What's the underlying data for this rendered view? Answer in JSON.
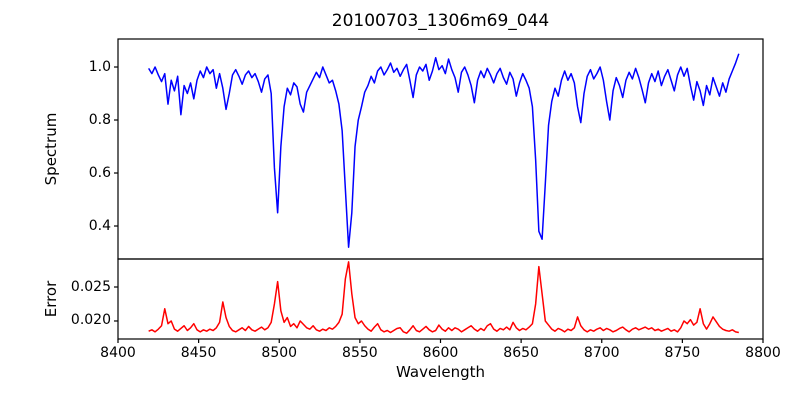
{
  "chart_data": {
    "type": "line",
    "title": "20100703_1306m69_044",
    "xlabel": "Wavelength",
    "xlim": [
      8400,
      8800
    ],
    "x_ticks": [
      8400,
      8450,
      8500,
      8550,
      8600,
      8650,
      8700,
      8750,
      8800
    ],
    "x_start": 8419,
    "x_step": 2,
    "legend": "none",
    "grid": false,
    "panels": [
      {
        "name": "spectrum",
        "ylabel": "Spectrum",
        "line_color": "#0000ff",
        "ylim": [
          0.2755,
          1.1057
        ],
        "y_ticks": [
          0.4,
          0.6,
          0.8,
          1.0
        ],
        "y_tick_labels": [
          "0.4",
          "0.6",
          "0.8",
          "1.0"
        ],
        "values": [
          0.995,
          0.975,
          1.0,
          0.97,
          0.945,
          0.975,
          0.86,
          0.95,
          0.91,
          0.965,
          0.82,
          0.93,
          0.9,
          0.94,
          0.88,
          0.95,
          0.985,
          0.96,
          1.0,
          0.975,
          0.99,
          0.92,
          0.975,
          0.92,
          0.84,
          0.9,
          0.97,
          0.99,
          0.965,
          0.935,
          0.97,
          0.985,
          0.96,
          0.975,
          0.945,
          0.905,
          0.955,
          0.97,
          0.9,
          0.62,
          0.45,
          0.7,
          0.85,
          0.92,
          0.895,
          0.94,
          0.925,
          0.86,
          0.83,
          0.905,
          0.93,
          0.955,
          0.98,
          0.96,
          1.0,
          0.97,
          0.94,
          0.95,
          0.91,
          0.86,
          0.76,
          0.54,
          0.32,
          0.45,
          0.7,
          0.8,
          0.85,
          0.905,
          0.93,
          0.965,
          0.94,
          0.985,
          1.0,
          0.97,
          0.99,
          1.015,
          0.98,
          0.995,
          0.965,
          0.99,
          1.01,
          0.95,
          0.885,
          0.97,
          1.0,
          0.985,
          1.01,
          0.95,
          0.985,
          1.035,
          0.99,
          1.005,
          0.975,
          1.03,
          0.99,
          0.96,
          0.905,
          0.98,
          1.0,
          0.97,
          0.93,
          0.865,
          0.95,
          0.985,
          0.96,
          0.995,
          0.97,
          0.94,
          0.975,
          0.995,
          0.96,
          0.935,
          0.98,
          0.955,
          0.89,
          0.94,
          0.975,
          0.95,
          0.92,
          0.85,
          0.65,
          0.38,
          0.35,
          0.56,
          0.78,
          0.87,
          0.92,
          0.89,
          0.95,
          0.985,
          0.95,
          0.975,
          0.94,
          0.85,
          0.79,
          0.9,
          0.965,
          0.99,
          0.955,
          0.975,
          1.0,
          0.95,
          0.87,
          0.8,
          0.91,
          0.96,
          0.93,
          0.885,
          0.95,
          0.98,
          0.955,
          0.995,
          0.96,
          0.915,
          0.865,
          0.94,
          0.975,
          0.945,
          0.985,
          0.93,
          0.965,
          0.99,
          0.95,
          0.91,
          0.97,
          1.0,
          0.965,
          0.995,
          0.93,
          0.875,
          0.945,
          0.91,
          0.855,
          0.93,
          0.895,
          0.96,
          0.925,
          0.89,
          0.94,
          0.905,
          0.955,
          0.985,
          1.015,
          1.05
        ]
      },
      {
        "name": "error",
        "ylabel": "Error",
        "line_color": "#ff0000",
        "ylim": [
          0.01735,
          0.02912
        ],
        "y_ticks": [
          0.02,
          0.025
        ],
        "y_tick_labels": [
          "0.020",
          "0.025"
        ],
        "values": [
          0.0185,
          0.0187,
          0.0184,
          0.0188,
          0.0193,
          0.0218,
          0.0196,
          0.02,
          0.0188,
          0.0185,
          0.0189,
          0.0193,
          0.0186,
          0.019,
          0.0196,
          0.0187,
          0.0184,
          0.0187,
          0.0185,
          0.0188,
          0.0186,
          0.019,
          0.0198,
          0.0228,
          0.0205,
          0.0192,
          0.0186,
          0.0184,
          0.0187,
          0.019,
          0.0186,
          0.0192,
          0.0187,
          0.0185,
          0.0188,
          0.0191,
          0.0187,
          0.019,
          0.0198,
          0.0225,
          0.0258,
          0.0215,
          0.0198,
          0.0205,
          0.0192,
          0.0196,
          0.019,
          0.02,
          0.0195,
          0.019,
          0.0188,
          0.0193,
          0.0187,
          0.0185,
          0.0188,
          0.0186,
          0.019,
          0.0188,
          0.0192,
          0.0198,
          0.021,
          0.0262,
          0.0287,
          0.024,
          0.0205,
          0.0196,
          0.02,
          0.0193,
          0.0188,
          0.0185,
          0.0191,
          0.0196,
          0.0187,
          0.0184,
          0.0186,
          0.0183,
          0.0186,
          0.0189,
          0.019,
          0.0184,
          0.0182,
          0.0187,
          0.0193,
          0.0186,
          0.0184,
          0.0188,
          0.0192,
          0.0187,
          0.0184,
          0.0186,
          0.0194,
          0.0188,
          0.0185,
          0.019,
          0.0186,
          0.019,
          0.0188,
          0.0184,
          0.0187,
          0.019,
          0.0193,
          0.0188,
          0.0185,
          0.0189,
          0.0186,
          0.0193,
          0.0196,
          0.0188,
          0.0185,
          0.0189,
          0.0187,
          0.0191,
          0.0187,
          0.0198,
          0.019,
          0.0186,
          0.0189,
          0.0187,
          0.0191,
          0.0196,
          0.0225,
          0.028,
          0.024,
          0.02,
          0.0194,
          0.0188,
          0.0185,
          0.0189,
          0.0187,
          0.0184,
          0.0188,
          0.0186,
          0.019,
          0.0206,
          0.0193,
          0.0187,
          0.0184,
          0.0187,
          0.0185,
          0.0188,
          0.019,
          0.0186,
          0.0189,
          0.0187,
          0.0184,
          0.0186,
          0.0189,
          0.0191,
          0.0187,
          0.0184,
          0.0188,
          0.019,
          0.0187,
          0.0189,
          0.0191,
          0.0188,
          0.019,
          0.0186,
          0.0188,
          0.0185,
          0.0187,
          0.0189,
          0.0185,
          0.0187,
          0.0184,
          0.019,
          0.02,
          0.0196,
          0.0202,
          0.0194,
          0.0198,
          0.0218,
          0.0196,
          0.0188,
          0.0196,
          0.0206,
          0.0199,
          0.0192,
          0.0188,
          0.0186,
          0.0185,
          0.0187,
          0.0184,
          0.0183
        ]
      }
    ]
  }
}
